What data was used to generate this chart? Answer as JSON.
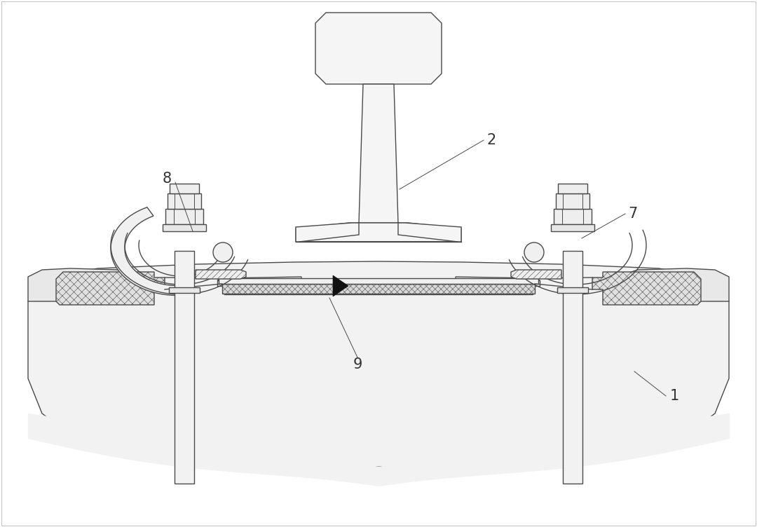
{
  "bg_color": "#ffffff",
  "line_color": "#4a4a4a",
  "dark_color": "#111111",
  "label_color": "#333333",
  "lw": 1.0,
  "tlw": 0.7,
  "hatch_lw": 0.4
}
